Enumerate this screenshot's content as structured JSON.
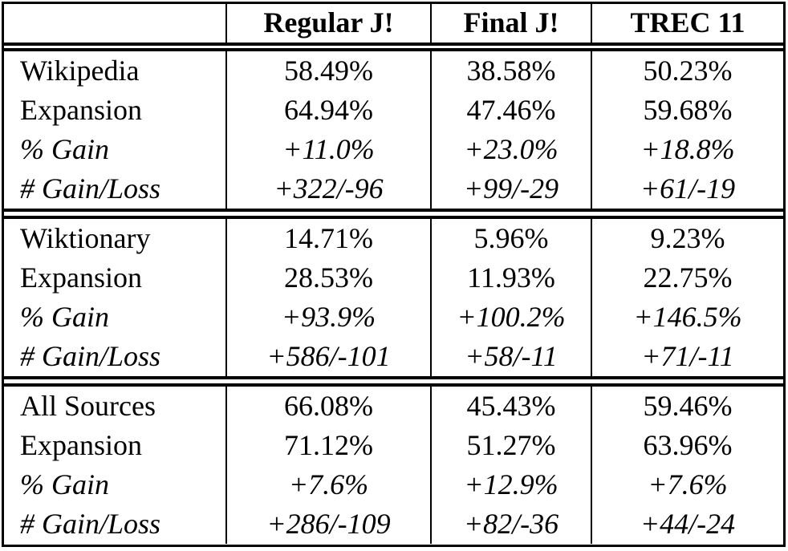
{
  "chart_data": {
    "type": "table",
    "title": "",
    "columns": [
      "",
      "Regular J!",
      "Final J!",
      "TREC 11"
    ],
    "groups": [
      {
        "name": "Wikipedia",
        "rows": [
          {
            "label": "Wikipedia",
            "style": "roman",
            "values": [
              "58.49%",
              "38.58%",
              "50.23%"
            ]
          },
          {
            "label": "Expansion",
            "style": "roman",
            "values": [
              "64.94%",
              "47.46%",
              "59.68%"
            ]
          },
          {
            "label": "% Gain",
            "style": "italic",
            "values": [
              "+11.0%",
              "+23.0%",
              "+18.8%"
            ]
          },
          {
            "label": "# Gain/Loss",
            "style": "italic",
            "values": [
              "+322/-96",
              "+99/-29",
              "+61/-19"
            ]
          }
        ]
      },
      {
        "name": "Wiktionary",
        "rows": [
          {
            "label": "Wiktionary",
            "style": "roman",
            "values": [
              "14.71%",
              "5.96%",
              "9.23%"
            ]
          },
          {
            "label": "Expansion",
            "style": "roman",
            "values": [
              "28.53%",
              "11.93%",
              "22.75%"
            ]
          },
          {
            "label": "% Gain",
            "style": "italic",
            "values": [
              "+93.9%",
              "+100.2%",
              "+146.5%"
            ]
          },
          {
            "label": "# Gain/Loss",
            "style": "italic",
            "values": [
              "+586/-101",
              "+58/-11",
              "+71/-11"
            ]
          }
        ]
      },
      {
        "name": "All Sources",
        "rows": [
          {
            "label": "All Sources",
            "style": "roman",
            "values": [
              "66.08%",
              "45.43%",
              "59.46%"
            ]
          },
          {
            "label": "Expansion",
            "style": "roman",
            "values": [
              "71.12%",
              "51.27%",
              "63.96%"
            ]
          },
          {
            "label": "% Gain",
            "style": "italic",
            "values": [
              "+7.6%",
              "+12.9%",
              "+7.6%"
            ]
          },
          {
            "label": "# Gain/Loss",
            "style": "italic",
            "values": [
              "+286/-109",
              "+82/-36",
              "+44/-24"
            ]
          }
        ]
      }
    ],
    "layout": {
      "header_rule": "double",
      "group_rule": "double",
      "outer_rule": "single",
      "column_separators": "single"
    },
    "colors": {
      "text": "#000000",
      "background": "#ffffff",
      "border": "#000000"
    }
  }
}
